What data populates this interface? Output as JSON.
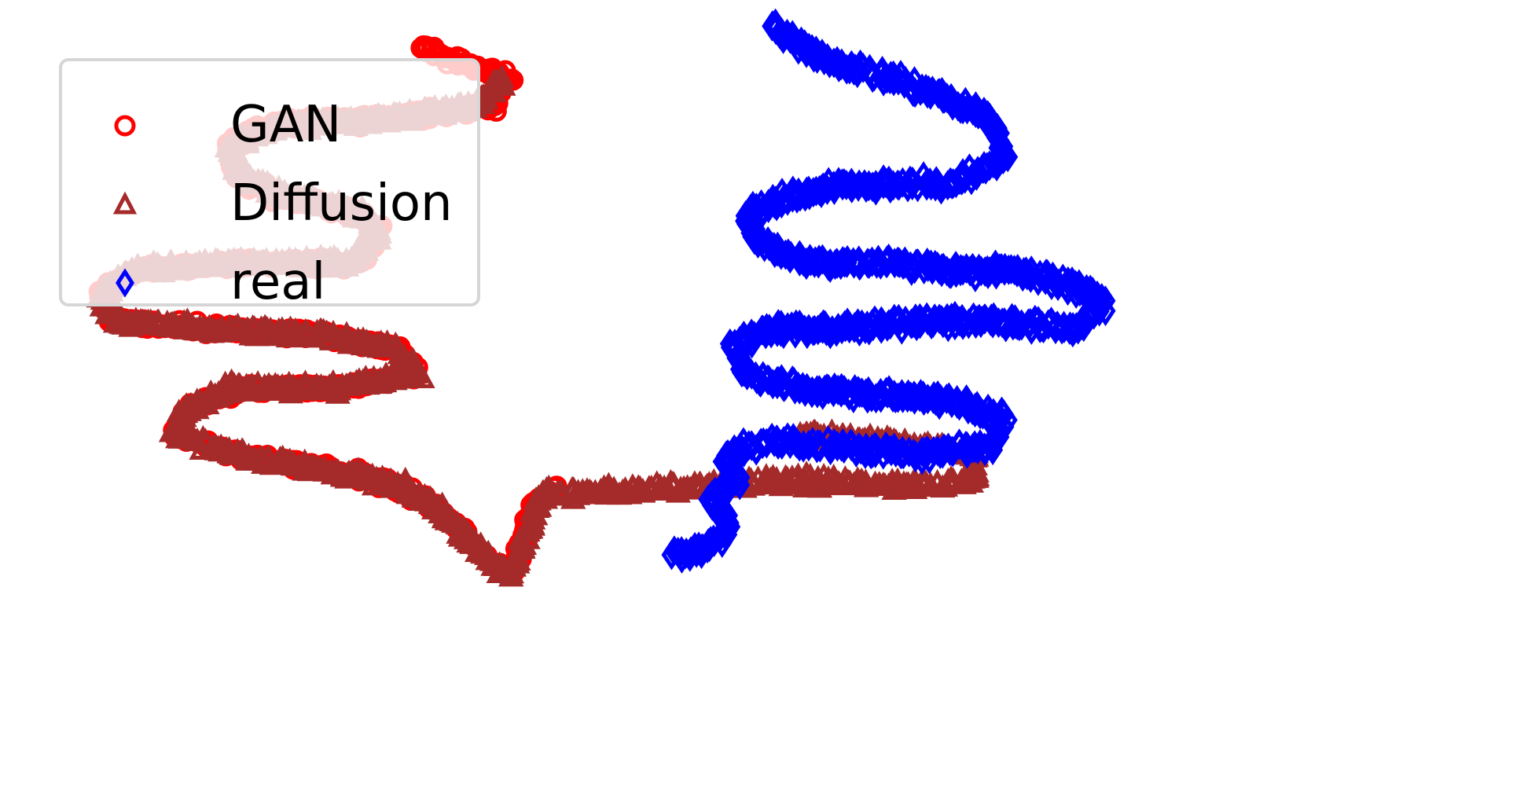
{
  "chart_data": {
    "type": "scatter",
    "title": "",
    "xlabel": "",
    "ylabel": "",
    "axes_visible": false,
    "grid": false,
    "xlim": [
      -100,
      100
    ],
    "ylim": [
      -60,
      60
    ],
    "legend_position": "top-left",
    "series": [
      {
        "name": "GAN",
        "marker": "circle",
        "color": "#ff0000",
        "path": [
          [
            -45,
            53
          ],
          [
            -38,
            50
          ],
          [
            -33,
            48
          ],
          [
            -35,
            44
          ],
          [
            -48,
            42
          ],
          [
            -65,
            41
          ],
          [
            -70,
            38
          ],
          [
            -69,
            33
          ],
          [
            -63,
            30
          ],
          [
            -54,
            28
          ],
          [
            -50,
            25
          ],
          [
            -53,
            20
          ],
          [
            -70,
            20
          ],
          [
            -82,
            19
          ],
          [
            -87,
            15
          ],
          [
            -85,
            11
          ],
          [
            -72,
            10
          ],
          [
            -58,
            9
          ],
          [
            -48,
            7
          ],
          [
            -45,
            3
          ],
          [
            -55,
            1
          ],
          [
            -68,
            1
          ],
          [
            -75,
            -2
          ],
          [
            -77,
            -6
          ],
          [
            -70,
            -9
          ],
          [
            -60,
            -11
          ],
          [
            -50,
            -13
          ],
          [
            -44,
            -16
          ],
          [
            -40,
            -20
          ],
          [
            -36,
            -25
          ],
          [
            -33,
            -27
          ],
          [
            -31,
            -22
          ],
          [
            -30,
            -17
          ],
          [
            -27,
            -14
          ]
        ]
      },
      {
        "name": "Diffusion",
        "marker": "triangle",
        "color": "#a52a2a",
        "path": [
          [
            -34,
            48
          ],
          [
            -37,
            44
          ],
          [
            -48,
            42
          ],
          [
            -63,
            41
          ],
          [
            -70,
            38
          ],
          [
            -68,
            33
          ],
          [
            -62,
            30
          ],
          [
            -53,
            28
          ],
          [
            -50,
            25
          ],
          [
            -54,
            20
          ],
          [
            -70,
            20
          ],
          [
            -83,
            19
          ],
          [
            -87,
            15
          ],
          [
            -84,
            11
          ],
          [
            -72,
            10
          ],
          [
            -58,
            9
          ],
          [
            -48,
            7
          ],
          [
            -45,
            3
          ],
          [
            -56,
            1
          ],
          [
            -70,
            1
          ],
          [
            -76,
            -3
          ],
          [
            -77,
            -6
          ],
          [
            -70,
            -9
          ],
          [
            -60,
            -11
          ],
          [
            -50,
            -13
          ],
          [
            -44,
            -16
          ],
          [
            -40,
            -20
          ],
          [
            -36,
            -25
          ],
          [
            -33,
            -27
          ],
          [
            -31,
            -22
          ],
          [
            -29,
            -15
          ],
          [
            -23,
            -15
          ],
          [
            -10,
            -14
          ],
          [
            5,
            -13
          ],
          [
            20,
            -14
          ],
          [
            28,
            -13
          ],
          [
            28,
            -9
          ],
          [
            15,
            -7
          ],
          [
            5,
            -6
          ]
        ]
      },
      {
        "name": "real",
        "marker": "diamond",
        "color": "#0000ff",
        "path": [
          [
            1,
            56
          ],
          [
            8,
            51
          ],
          [
            20,
            47
          ],
          [
            30,
            42
          ],
          [
            32,
            36
          ],
          [
            25,
            32
          ],
          [
            12,
            32
          ],
          [
            3,
            30
          ],
          [
            -2,
            27
          ],
          [
            -1,
            24
          ],
          [
            5,
            20
          ],
          [
            10,
            20
          ],
          [
            17,
            20
          ],
          [
            25,
            19
          ],
          [
            33,
            19
          ],
          [
            40,
            17
          ],
          [
            45,
            14
          ],
          [
            41,
            10
          ],
          [
            32,
            11
          ],
          [
            20,
            11
          ],
          [
            10,
            10
          ],
          [
            1,
            10
          ],
          [
            -4,
            7
          ],
          [
            -2,
            3
          ],
          [
            5,
            1
          ],
          [
            15,
            0
          ],
          [
            25,
            -1
          ],
          [
            32,
            -4
          ],
          [
            30,
            -8
          ],
          [
            20,
            -9
          ],
          [
            10,
            -8
          ],
          [
            2,
            -7
          ],
          [
            -2,
            -8
          ],
          [
            -5,
            -10
          ],
          [
            -3,
            -13
          ],
          [
            -7,
            -16
          ],
          [
            -4,
            -20
          ],
          [
            -8,
            -24
          ],
          [
            -12,
            -24
          ]
        ]
      }
    ]
  }
}
